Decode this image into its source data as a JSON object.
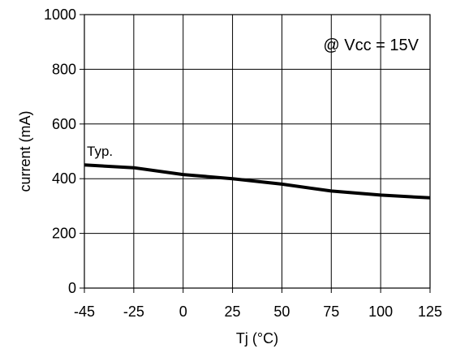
{
  "chart_data": {
    "type": "line",
    "title": "",
    "xlabel": "Tj (°C)",
    "ylabel": "current (mA)",
    "annotation": "@ Vcc = 15V",
    "xlim": [
      -45,
      125
    ],
    "ylim": [
      0,
      1000
    ],
    "x_ticks": [
      -45,
      -25,
      0,
      25,
      50,
      75,
      100,
      125
    ],
    "x_tick_labels": [
      "-45",
      "-25",
      "0",
      "25",
      "50",
      "75",
      "100",
      "125"
    ],
    "y_ticks": [
      0,
      200,
      400,
      600,
      800,
      1000
    ],
    "y_tick_labels": [
      "0",
      "200",
      "400",
      "600",
      "800",
      "1000"
    ],
    "grid": true,
    "legend": "none",
    "series": [
      {
        "name": "Typ.",
        "color": "#000000",
        "x": [
          -45,
          -25,
          0,
          25,
          50,
          75,
          100,
          125
        ],
        "y": [
          450,
          440,
          415,
          400,
          380,
          355,
          340,
          330
        ]
      }
    ]
  }
}
